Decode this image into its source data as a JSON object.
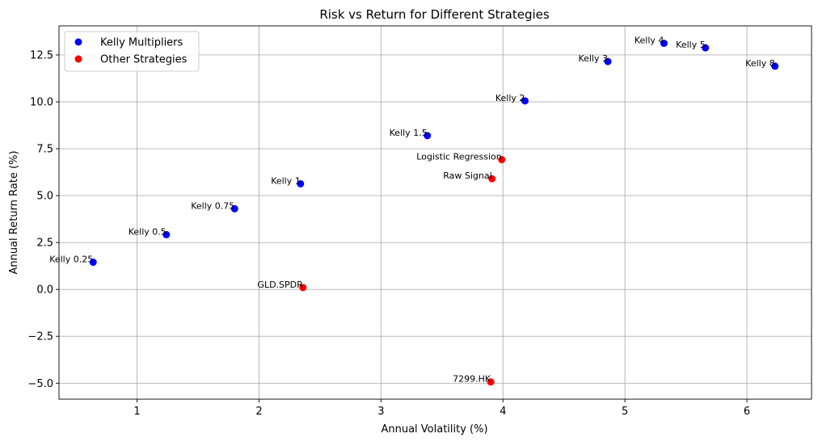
{
  "chart_data": {
    "type": "scatter",
    "title": "Risk vs Return for Different Strategies",
    "xlabel": "Annual Volatility (%)",
    "ylabel": "Annual Return Rate (%)",
    "xlim": [
      0.36,
      6.53
    ],
    "ylim": [
      -5.85,
      14.05
    ],
    "xticks": [
      1,
      2,
      3,
      4,
      5,
      6
    ],
    "xtick_labels": [
      "1",
      "2",
      "3",
      "4",
      "5",
      "6"
    ],
    "yticks": [
      -5.0,
      -2.5,
      0.0,
      2.5,
      5.0,
      7.5,
      10.0,
      12.5
    ],
    "ytick_labels": [
      "−5.0",
      "−2.5",
      "0.0",
      "2.5",
      "5.0",
      "7.5",
      "10.0",
      "12.5"
    ],
    "grid": true,
    "legend_position": "top-left",
    "series": [
      {
        "name": "Kelly Multipliers",
        "color": "#0000ff",
        "points": [
          {
            "label": "Kelly 0.25",
            "x": 0.64,
            "y": 1.45
          },
          {
            "label": "Kelly 0.5",
            "x": 1.24,
            "y": 2.92
          },
          {
            "label": "Kelly 0.75",
            "x": 1.8,
            "y": 4.3
          },
          {
            "label": "Kelly 1",
            "x": 2.34,
            "y": 5.63
          },
          {
            "label": "Kelly 1.5",
            "x": 3.38,
            "y": 8.2
          },
          {
            "label": "Kelly 2",
            "x": 4.18,
            "y": 10.05
          },
          {
            "label": "Kelly 3",
            "x": 4.86,
            "y": 12.15
          },
          {
            "label": "Kelly 4",
            "x": 5.32,
            "y": 13.12
          },
          {
            "label": "Kelly 5",
            "x": 5.66,
            "y": 12.88
          },
          {
            "label": "Kelly 8",
            "x": 6.23,
            "y": 11.9
          }
        ]
      },
      {
        "name": "Other Strategies",
        "color": "#ff0000",
        "points": [
          {
            "label": "Logistic Regression",
            "x": 3.99,
            "y": 6.92
          },
          {
            "label": "Raw Signal",
            "x": 3.91,
            "y": 5.9
          },
          {
            "label": "GLD.SPDR",
            "x": 2.36,
            "y": 0.1
          },
          {
            "label": "7299.HK",
            "x": 3.9,
            "y": -4.93
          }
        ]
      }
    ]
  }
}
